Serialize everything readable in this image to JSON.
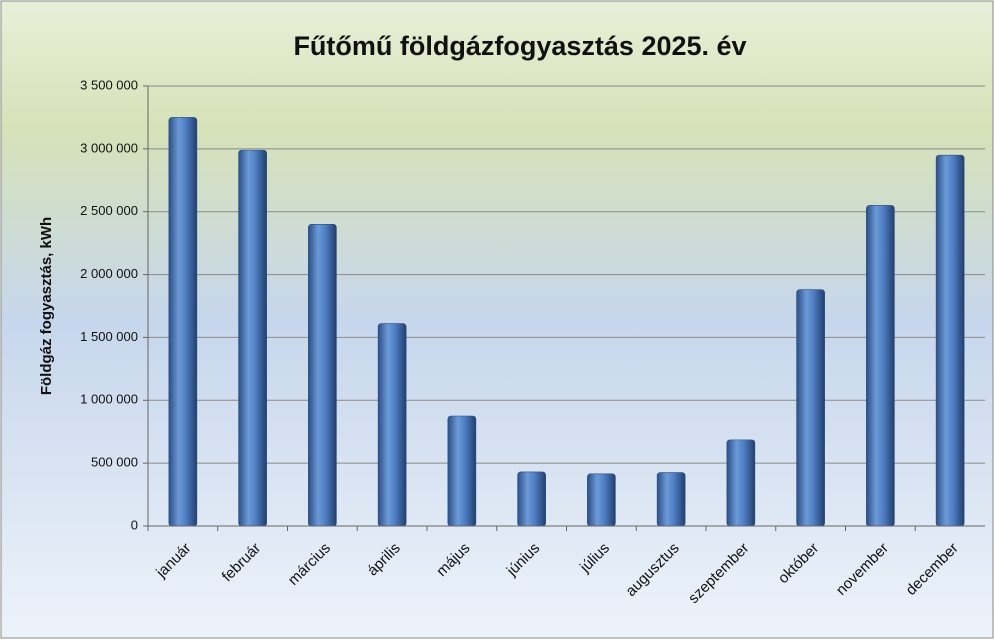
{
  "chart_data": {
    "type": "bar",
    "title": "Fűtőmű földgázfogyasztás 2025. év",
    "y_label": "Földgáz fogyasztás, kWh",
    "categories": [
      "január",
      "február",
      "március",
      "április",
      "május",
      "június",
      "július",
      "augusztus",
      "szeptember",
      "október",
      "november",
      "december"
    ],
    "values": [
      3250000,
      2990000,
      2400000,
      1610000,
      875000,
      430000,
      415000,
      425000,
      685000,
      1880000,
      2550000,
      2950000
    ],
    "color": "#4f7fc4",
    "ylim": [
      0,
      3500000
    ],
    "yticks": [
      0,
      {
        "value": 500000,
        "label": "500 000"
      },
      {
        "value": 1000000,
        "label": "1 000 000"
      },
      {
        "value": 1500000,
        "label": "1 500 000"
      },
      {
        "value": 2000000,
        "label": "2 000 000"
      },
      {
        "value": 2500000,
        "label": "2 500 000"
      },
      {
        "value": 3000000,
        "label": "3 000 000"
      },
      {
        "value": 3500000,
        "label": "3 500 000"
      }
    ],
    "grid": true
  }
}
